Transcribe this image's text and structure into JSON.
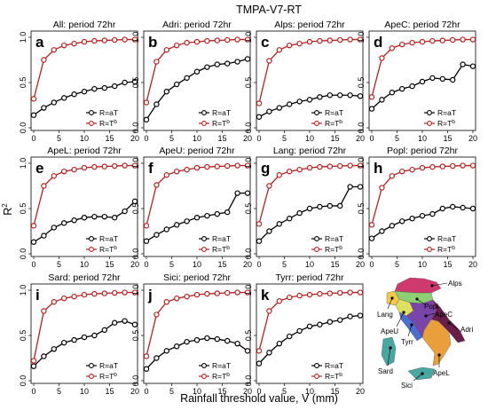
{
  "figure": {
    "title": "TMPA-V7-RT",
    "xlabel": "Rainfall threshold value, V (mm)",
    "ylabel_base": "R",
    "ylabel_sup": "2"
  },
  "colors": {
    "red": "#b22222",
    "black": "#000000"
  },
  "legend": {
    "black_base": "R=aT",
    "red_base": "R=T",
    "red_sup": "b"
  },
  "chart_data": [
    {
      "type": "line",
      "letter": "a",
      "title": "All: period 72hr",
      "xlim": [
        0,
        20
      ],
      "ylim": [
        0,
        1
      ],
      "xticks": [
        0,
        5,
        10,
        15,
        20
      ],
      "yticks": [
        0.0,
        0.5,
        1.0
      ],
      "x": [
        0,
        2,
        4,
        6,
        8,
        10,
        12,
        14,
        16,
        18,
        20
      ],
      "series": [
        {
          "name": "R=aT",
          "values": [
            0.14,
            0.22,
            0.28,
            0.33,
            0.37,
            0.4,
            0.43,
            0.44,
            0.46,
            0.5,
            0.51
          ]
        },
        {
          "name": "R=Tb",
          "values": [
            0.32,
            0.75,
            0.86,
            0.91,
            0.93,
            0.95,
            0.96,
            0.965,
            0.97,
            0.975,
            0.975
          ]
        }
      ]
    },
    {
      "type": "line",
      "letter": "b",
      "title": "Adri: period 72hr",
      "xlim": [
        0,
        20
      ],
      "ylim": [
        0,
        1
      ],
      "xticks": [
        0,
        5,
        10,
        15,
        20
      ],
      "yticks": [
        0.0,
        0.5,
        1.0
      ],
      "x": [
        0,
        2,
        4,
        6,
        8,
        10,
        12,
        14,
        16,
        18,
        20
      ],
      "series": [
        {
          "name": "R=aT",
          "values": [
            0.09,
            0.26,
            0.4,
            0.48,
            0.55,
            0.62,
            0.67,
            0.7,
            0.71,
            0.73,
            0.76
          ]
        },
        {
          "name": "R=Tb",
          "values": [
            0.28,
            0.73,
            0.86,
            0.91,
            0.94,
            0.95,
            0.96,
            0.965,
            0.97,
            0.975,
            0.975
          ]
        }
      ]
    },
    {
      "type": "line",
      "letter": "c",
      "title": "Alps: period 72hr",
      "xlim": [
        0,
        20
      ],
      "ylim": [
        0,
        1
      ],
      "xticks": [
        0,
        5,
        10,
        15,
        20
      ],
      "yticks": [
        0.0,
        0.5,
        1.0
      ],
      "x": [
        0,
        2,
        4,
        6,
        8,
        10,
        12,
        14,
        16,
        18,
        20
      ],
      "series": [
        {
          "name": "R=aT",
          "values": [
            0.12,
            0.18,
            0.22,
            0.26,
            0.29,
            0.31,
            0.34,
            0.36,
            0.36,
            0.36,
            0.35
          ]
        },
        {
          "name": "R=Tb",
          "values": [
            0.27,
            0.74,
            0.86,
            0.91,
            0.93,
            0.95,
            0.96,
            0.965,
            0.97,
            0.975,
            0.975
          ]
        }
      ]
    },
    {
      "type": "line",
      "letter": "d",
      "title": "ApeC: period 72hr",
      "xlim": [
        0,
        20
      ],
      "ylim": [
        0,
        1
      ],
      "xticks": [
        0,
        5,
        10,
        15,
        20
      ],
      "yticks": [
        0.0,
        0.5,
        1.0
      ],
      "x": [
        0,
        2,
        4,
        6,
        8,
        10,
        12,
        14,
        16,
        18,
        20
      ],
      "series": [
        {
          "name": "R=aT",
          "values": [
            0.21,
            0.31,
            0.39,
            0.43,
            0.46,
            0.51,
            0.55,
            0.54,
            0.53,
            0.7,
            0.68
          ]
        },
        {
          "name": "R=Tb",
          "values": [
            0.34,
            0.77,
            0.88,
            0.92,
            0.94,
            0.95,
            0.96,
            0.965,
            0.97,
            0.975,
            0.975
          ]
        }
      ]
    },
    {
      "type": "line",
      "letter": "e",
      "title": "ApeL: period 72hr",
      "xlim": [
        0,
        20
      ],
      "ylim": [
        0,
        1
      ],
      "xticks": [
        0,
        5,
        10,
        15,
        20
      ],
      "yticks": [
        0.0,
        0.5,
        1.0
      ],
      "x": [
        0,
        2,
        4,
        6,
        8,
        10,
        12,
        14,
        16,
        18,
        20
      ],
      "series": [
        {
          "name": "R=aT",
          "values": [
            0.13,
            0.2,
            0.29,
            0.34,
            0.37,
            0.4,
            0.41,
            0.41,
            0.4,
            0.47,
            0.58
          ]
        },
        {
          "name": "R=Tb",
          "values": [
            0.31,
            0.75,
            0.86,
            0.91,
            0.93,
            0.95,
            0.96,
            0.965,
            0.97,
            0.975,
            0.975
          ]
        }
      ]
    },
    {
      "type": "line",
      "letter": "f",
      "title": "ApeU: period 72hr",
      "xlim": [
        0,
        20
      ],
      "ylim": [
        0,
        1
      ],
      "xticks": [
        0,
        5,
        10,
        15,
        20
      ],
      "yticks": [
        0.0,
        0.5,
        1.0
      ],
      "x": [
        0,
        2,
        4,
        6,
        8,
        10,
        12,
        14,
        16,
        18,
        20
      ],
      "series": [
        {
          "name": "R=aT",
          "values": [
            0.14,
            0.21,
            0.27,
            0.32,
            0.36,
            0.4,
            0.42,
            0.44,
            0.46,
            0.67,
            0.67
          ]
        },
        {
          "name": "R=Tb",
          "values": [
            0.31,
            0.76,
            0.87,
            0.91,
            0.93,
            0.95,
            0.96,
            0.965,
            0.97,
            0.975,
            0.975
          ]
        }
      ]
    },
    {
      "type": "line",
      "letter": "g",
      "title": "Lang: period 72hr",
      "xlim": [
        0,
        20
      ],
      "ylim": [
        0,
        1
      ],
      "xticks": [
        0,
        5,
        10,
        15,
        20
      ],
      "yticks": [
        0.0,
        0.5,
        1.0
      ],
      "x": [
        0,
        2,
        4,
        6,
        8,
        10,
        12,
        14,
        16,
        18,
        20
      ],
      "series": [
        {
          "name": "R=aT",
          "values": [
            0.14,
            0.25,
            0.33,
            0.39,
            0.45,
            0.5,
            0.52,
            0.53,
            0.53,
            0.74,
            0.74
          ]
        },
        {
          "name": "R=Tb",
          "values": [
            0.33,
            0.75,
            0.87,
            0.91,
            0.93,
            0.95,
            0.96,
            0.965,
            0.97,
            0.975,
            0.975
          ]
        }
      ]
    },
    {
      "type": "line",
      "letter": "h",
      "title": "Popl: period 72hr",
      "xlim": [
        0,
        20
      ],
      "ylim": [
        0,
        1
      ],
      "xticks": [
        0,
        5,
        10,
        15,
        20
      ],
      "yticks": [
        0.0,
        0.5,
        1.0
      ],
      "x": [
        0,
        2,
        4,
        6,
        8,
        10,
        12,
        14,
        16,
        18,
        20
      ],
      "series": [
        {
          "name": "R=aT",
          "values": [
            0.17,
            0.25,
            0.31,
            0.36,
            0.39,
            0.42,
            0.44,
            0.5,
            0.52,
            0.51,
            0.5
          ]
        },
        {
          "name": "R=Tb",
          "values": [
            0.32,
            0.73,
            0.86,
            0.91,
            0.93,
            0.95,
            0.96,
            0.965,
            0.97,
            0.975,
            0.975
          ]
        }
      ]
    },
    {
      "type": "line",
      "letter": "i",
      "title": "Sard: period 72hr",
      "xlim": [
        0,
        20
      ],
      "ylim": [
        0,
        1
      ],
      "xticks": [
        0,
        5,
        10,
        15,
        20
      ],
      "yticks": [
        0.0,
        0.5,
        1.0
      ],
      "x": [
        0,
        2,
        4,
        6,
        8,
        10,
        12,
        14,
        16,
        18,
        20
      ],
      "series": [
        {
          "name": "R=aT",
          "values": [
            0.16,
            0.27,
            0.35,
            0.42,
            0.45,
            0.48,
            0.5,
            0.56,
            0.64,
            0.66,
            0.62
          ]
        },
        {
          "name": "R=Tb",
          "values": [
            0.22,
            0.77,
            0.87,
            0.91,
            0.93,
            0.95,
            0.96,
            0.965,
            0.97,
            0.975,
            0.975
          ]
        }
      ]
    },
    {
      "type": "line",
      "letter": "j",
      "title": "Sici: period 72hr",
      "xlim": [
        0,
        20
      ],
      "ylim": [
        0,
        1
      ],
      "xticks": [
        0,
        5,
        10,
        15,
        20
      ],
      "yticks": [
        0.0,
        0.5,
        1.0
      ],
      "x": [
        0,
        2,
        4,
        6,
        8,
        10,
        12,
        14,
        16,
        18,
        20
      ],
      "series": [
        {
          "name": "R=aT",
          "values": [
            0.13,
            0.25,
            0.33,
            0.38,
            0.43,
            0.45,
            0.47,
            0.46,
            0.44,
            0.41,
            0.33
          ]
        },
        {
          "name": "R=Tb",
          "values": [
            0.27,
            0.73,
            0.87,
            0.91,
            0.93,
            0.95,
            0.96,
            0.965,
            0.97,
            0.975,
            0.975
          ]
        }
      ]
    },
    {
      "type": "line",
      "letter": "k",
      "title": "Tyrr: period 72hr",
      "xlim": [
        0,
        20
      ],
      "ylim": [
        0,
        1
      ],
      "xticks": [
        0,
        5,
        10,
        15,
        20
      ],
      "yticks": [
        0.0,
        0.5,
        1.0
      ],
      "x": [
        0,
        2,
        4,
        6,
        8,
        10,
        12,
        14,
        16,
        18,
        20
      ],
      "series": [
        {
          "name": "R=aT",
          "values": [
            0.19,
            0.31,
            0.41,
            0.49,
            0.55,
            0.6,
            0.62,
            0.65,
            0.67,
            0.71,
            0.72
          ]
        },
        {
          "name": "R=Tb",
          "values": [
            0.33,
            0.77,
            0.88,
            0.92,
            0.94,
            0.95,
            0.96,
            0.965,
            0.97,
            0.975,
            0.975
          ]
        }
      ]
    }
  ],
  "map": {
    "labels": [
      "Alps",
      "Popl",
      "Lang",
      "ApeC",
      "Adri",
      "ApeU",
      "Tyrr",
      "Sard",
      "ApeL",
      "Sici"
    ]
  }
}
